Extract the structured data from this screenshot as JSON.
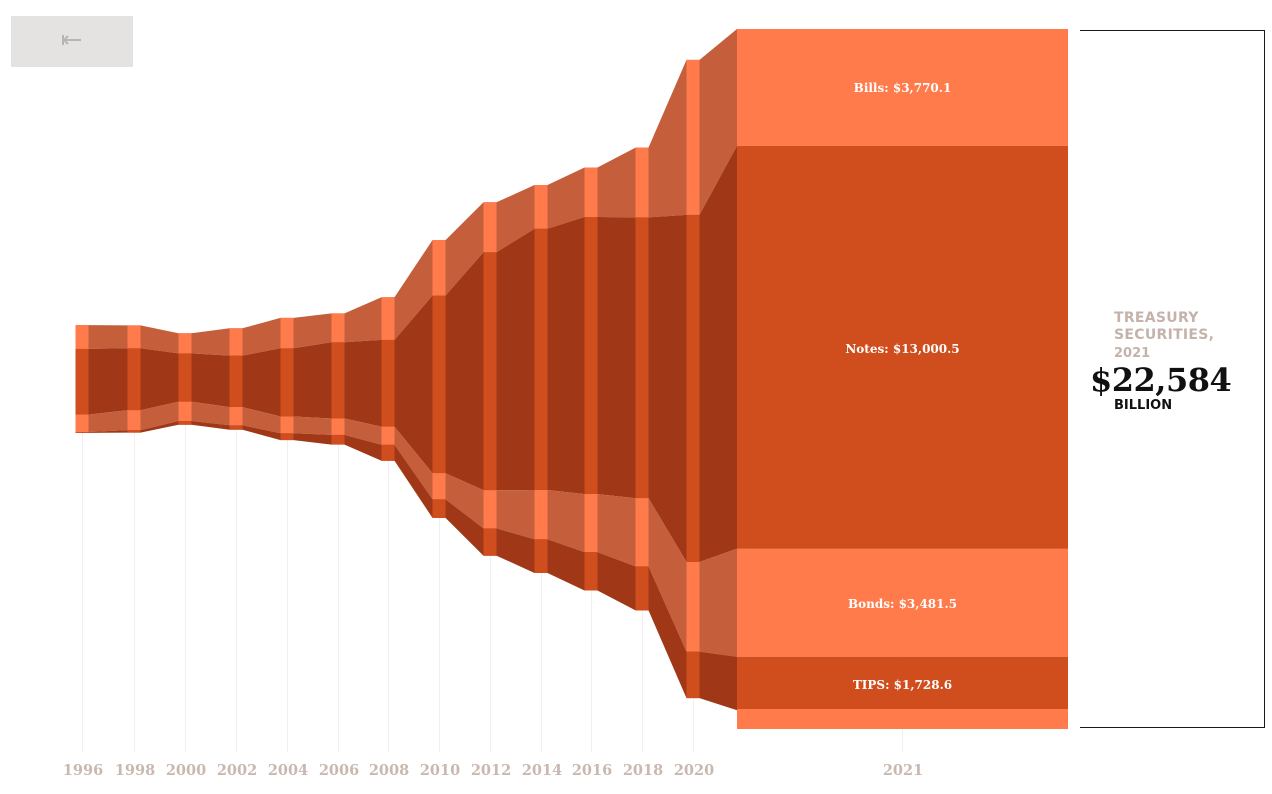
{
  "nav": {
    "back_icon": "arrow-left-icon"
  },
  "colors": {
    "bills_band": "#c45e3b",
    "notes_band": "#a03818",
    "bonds_band": "#c45e3b",
    "tips_band": "#a03818",
    "year_bar_light": "#ff7b4c",
    "year_bar_dark": "#d04e1e",
    "grid": "#efefef",
    "axis_text": "#c9b8b0"
  },
  "total": {
    "title": "TREASURY SECURITIES,",
    "year": "2021",
    "value": "$22,584",
    "unit": "BILLION"
  },
  "chart_data": {
    "type": "area",
    "layout": "centered streamgraph (stacked, symmetric)",
    "x": [
      "1996",
      "1998",
      "2000",
      "2002",
      "2004",
      "2006",
      "2008",
      "2010",
      "2012",
      "2014",
      "2016",
      "2018",
      "2020",
      "2021"
    ],
    "unit": "billion $",
    "series": [
      {
        "name": "Bills",
        "values": [
          770,
          740,
          650,
          880,
          980,
          930,
          1380,
          1790,
          1610,
          1410,
          1600,
          2250,
          5000,
          3770.1
        ]
      },
      {
        "name": "Notes",
        "values": [
          2120,
          2000,
          1560,
          1660,
          2200,
          2460,
          2800,
          5730,
          7680,
          8430,
          8940,
          9060,
          11200,
          13000.5
        ]
      },
      {
        "name": "Bonds",
        "values": [
          560,
          640,
          620,
          590,
          540,
          530,
          580,
          840,
          1230,
          1590,
          1870,
          2200,
          2890,
          3481.5
        ]
      },
      {
        "name": "TIPS",
        "values": [
          30,
          80,
          120,
          140,
          220,
          310,
          520,
          600,
          880,
          1090,
          1240,
          1420,
          1500,
          1728.6
        ]
      }
    ],
    "segment_labels": [
      "Bills: $3,770.1",
      "Notes: $13,000.5",
      "Bonds: $3,481.5",
      "TIPS: $1,728.6"
    ],
    "ylim": [
      0,
      22584
    ],
    "grid": true
  }
}
